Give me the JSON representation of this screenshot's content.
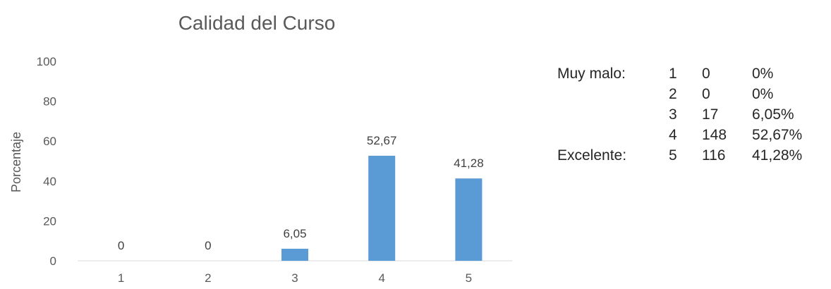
{
  "chart_data": {
    "type": "bar",
    "title": "Calidad del Curso",
    "ylabel": "Porcentaje",
    "xlabel": "",
    "categories": [
      "1",
      "2",
      "3",
      "4",
      "5"
    ],
    "values": [
      0,
      0,
      6.05,
      52.67,
      41.28
    ],
    "data_labels": [
      "0",
      "0",
      "6,05",
      "52,67",
      "41,28"
    ],
    "ylim": [
      0,
      100
    ],
    "yticks": [
      "0",
      "20",
      "40",
      "60",
      "80",
      "100"
    ],
    "grid": false,
    "legend": "none",
    "bar_color": "#5b9bd5"
  },
  "summary": {
    "rows": [
      {
        "label": "Muy malo:",
        "rating": "1",
        "count": "0",
        "percent": "0%"
      },
      {
        "label": "",
        "rating": "2",
        "count": "0",
        "percent": "0%"
      },
      {
        "label": "",
        "rating": "3",
        "count": "17",
        "percent": "6,05%"
      },
      {
        "label": "",
        "rating": "4",
        "count": "148",
        "percent": "52,67%"
      },
      {
        "label": "Excelente:",
        "rating": "5",
        "count": "116",
        "percent": "41,28%"
      }
    ]
  }
}
